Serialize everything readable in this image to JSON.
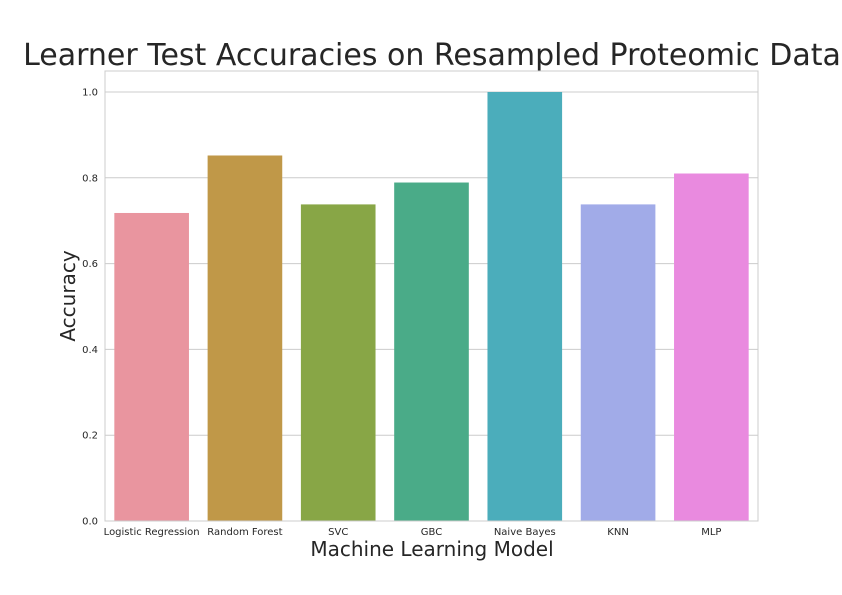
{
  "chart_data": {
    "type": "bar",
    "title": "Learner Test Accuracies on Resampled Proteomic Data",
    "xlabel": "Machine Learning Model",
    "ylabel": "Accuracy",
    "categories": [
      "Logistic Regression",
      "Random Forest",
      "SVC",
      "GBC",
      "Naive Bayes",
      "KNN",
      "MLP"
    ],
    "values": [
      0.718,
      0.852,
      0.738,
      0.789,
      1.0,
      0.738,
      0.81
    ],
    "colors": [
      "#e9959f",
      "#c09848",
      "#88a646",
      "#4aab88",
      "#4badbb",
      "#a1abe8",
      "#e98adf"
    ],
    "ylim": [
      0,
      1.0
    ],
    "yticks": [
      "0.0",
      "0.2",
      "0.4",
      "0.6",
      "0.8",
      "1.0"
    ],
    "grid": true,
    "legend": "none"
  }
}
